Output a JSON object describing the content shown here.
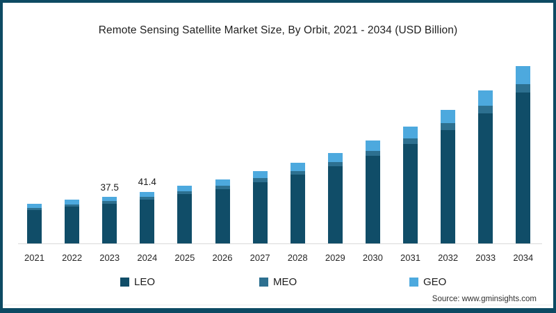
{
  "title": "Remote Sensing Satellite Market Size, By Orbit, 2021 - 2034 (USD Billion)",
  "source": "Source: www.gminsights.com",
  "frame_color": "#0d4a63",
  "legend": [
    {
      "label": "LEO",
      "color": "#104d68"
    },
    {
      "label": "MEO",
      "color": "#2d7090"
    },
    {
      "label": "GEO",
      "color": "#4da9de"
    }
  ],
  "chart_data": {
    "type": "bar",
    "stacked": true,
    "title": "Remote Sensing Satellite Market Size, By Orbit, 2021 - 2034 (USD Billion)",
    "unit": "USD Billion",
    "categories": [
      "2021",
      "2022",
      "2023",
      "2024",
      "2025",
      "2026",
      "2027",
      "2028",
      "2029",
      "2030",
      "2031",
      "2032",
      "2033",
      "2034"
    ],
    "series": [
      {
        "name": "LEO",
        "color": "#104d68",
        "values": [
          26.9,
          29.7,
          31.9,
          35.2,
          39.2,
          43.5,
          49.1,
          54.8,
          61.5,
          69.9,
          79.3,
          90.7,
          103.9,
          120.4
        ]
      },
      {
        "name": "MEO",
        "color": "#2d7090",
        "values": [
          1.6,
          1.7,
          1.9,
          2.1,
          2.3,
          2.6,
          2.9,
          3.2,
          3.6,
          4.1,
          4.7,
          5.3,
          6.1,
          7.1
        ]
      },
      {
        "name": "GEO",
        "color": "#4da9de",
        "values": [
          3.2,
          3.5,
          3.7,
          4.1,
          4.6,
          5.1,
          5.8,
          6.5,
          7.2,
          8.2,
          9.3,
          10.7,
          12.2,
          14.2
        ]
      }
    ],
    "totals": [
      31.7,
      34.9,
      37.5,
      41.4,
      46.1,
      51.2,
      57.8,
      64.5,
      72.3,
      82.2,
      93.3,
      106.7,
      122.2,
      141.7
    ],
    "data_labels": [
      "",
      "",
      "37.5",
      "41.4",
      "",
      "",
      "",
      "",
      "",
      "",
      "",
      "",
      "",
      ""
    ],
    "xlabel": "",
    "ylabel": "",
    "ylim": [
      0,
      150
    ],
    "grid": false,
    "legend_position": "bottom"
  }
}
